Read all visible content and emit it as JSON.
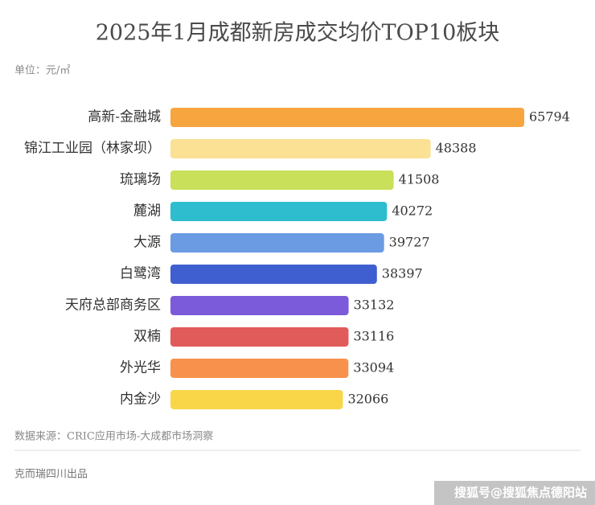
{
  "chart_data": {
    "type": "bar",
    "orientation": "horizontal",
    "title": "2025年1月成都新房成交均价TOP10板块",
    "unit_label": "单位：元/㎡",
    "categories": [
      "高新-金融城",
      "锦江工业园（林家坝）",
      "琉璃场",
      "麓湖",
      "大源",
      "白鹭湾",
      "天府总部商务区",
      "双楠",
      "外光华",
      "内金沙"
    ],
    "values": [
      65794,
      48388,
      41508,
      40272,
      39727,
      38397,
      33132,
      33116,
      33094,
      32066
    ],
    "colors": [
      "#f7a53e",
      "#fbe193",
      "#c9e05a",
      "#2dbdcf",
      "#6b9be2",
      "#3f5fd0",
      "#7b5bd9",
      "#e25b5b",
      "#f7914b",
      "#f8d648"
    ]
  },
  "source": "数据来源：CRIC应用市场-大成都市场洞察",
  "footer": "克而瑞四川出品",
  "watermark": "搜狐号@搜狐焦点德阳站"
}
